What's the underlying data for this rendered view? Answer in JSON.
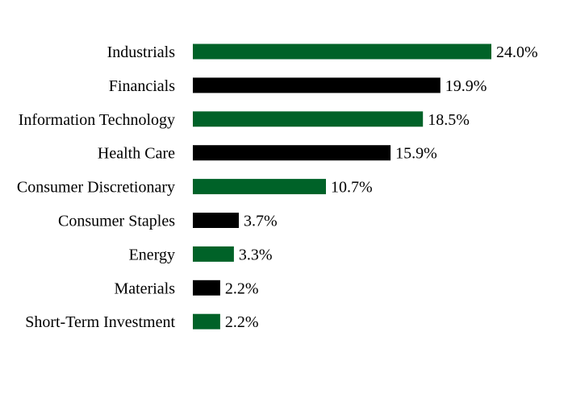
{
  "chart_data": {
    "type": "bar",
    "orientation": "horizontal",
    "title": "",
    "xlabel": "",
    "ylabel": "",
    "grid": false,
    "legend": "none",
    "xlim": [
      0,
      24.0
    ],
    "categories": [
      "Industrials",
      "Financials",
      "Information Technology",
      "Health Care",
      "Consumer Discretionary",
      "Consumer Staples",
      "Energy",
      "Materials",
      "Short-Term Investment"
    ],
    "values": [
      24.0,
      19.9,
      18.5,
      15.9,
      10.7,
      3.7,
      3.3,
      2.2,
      2.2
    ],
    "value_labels": [
      "24.0%",
      "19.9%",
      "18.5%",
      "15.9%",
      "10.7%",
      "3.7%",
      "3.3%",
      "2.2%",
      "2.2%"
    ],
    "colors": [
      "#006228",
      "#000000",
      "#006228",
      "#000000",
      "#006228",
      "#000000",
      "#006228",
      "#000000",
      "#006228"
    ]
  }
}
